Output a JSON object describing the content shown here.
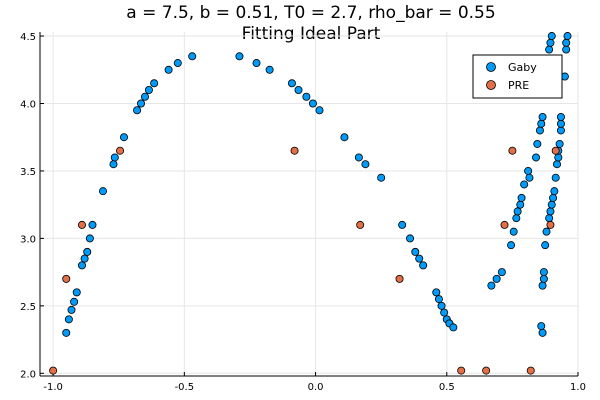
{
  "chart_data": {
    "type": "scatter",
    "title": "a = 7.5, b = 0.51, T0 = 2.7, rho_bar = 0.55",
    "subtitle": "Fitting Ideal Part",
    "xlabel": "",
    "ylabel": "",
    "xlim": [
      -1.05,
      1.0
    ],
    "ylim": [
      1.98,
      4.53
    ],
    "grid": true,
    "legend_position": "top-right",
    "x_ticks": [
      {
        "value": -1.0,
        "label": "-1.0"
      },
      {
        "value": -0.5,
        "label": "-0.5"
      },
      {
        "value": 0.0,
        "label": "0.0"
      },
      {
        "value": 0.5,
        "label": "0.5"
      },
      {
        "value": 1.0,
        "label": "1.0"
      }
    ],
    "y_ticks": [
      {
        "value": 2.0,
        "label": "2.0"
      },
      {
        "value": 2.5,
        "label": "2.5"
      },
      {
        "value": 3.0,
        "label": "3.0"
      },
      {
        "value": 3.5,
        "label": "3.5"
      },
      {
        "value": 4.0,
        "label": "4.0"
      },
      {
        "value": 4.5,
        "label": "4.5"
      }
    ],
    "series": [
      {
        "name": "Gaby",
        "color": "#009af9",
        "points": [
          [
            -0.95,
            2.3
          ],
          [
            -0.94,
            2.4
          ],
          [
            -0.93,
            2.47
          ],
          [
            -0.92,
            2.53
          ],
          [
            -0.91,
            2.6
          ],
          [
            -0.89,
            2.8
          ],
          [
            -0.88,
            2.85
          ],
          [
            -0.87,
            2.9
          ],
          [
            -0.86,
            3.0
          ],
          [
            -0.85,
            3.1
          ],
          [
            -0.81,
            3.35
          ],
          [
            -0.77,
            3.55
          ],
          [
            -0.765,
            3.6
          ],
          [
            -0.73,
            3.75
          ],
          [
            -0.68,
            3.95
          ],
          [
            -0.665,
            4.0
          ],
          [
            -0.65,
            4.05
          ],
          [
            -0.635,
            4.1
          ],
          [
            -0.615,
            4.15
          ],
          [
            -0.56,
            4.25
          ],
          [
            -0.525,
            4.3
          ],
          [
            -0.47,
            4.35
          ],
          [
            -0.29,
            4.35
          ],
          [
            -0.225,
            4.3
          ],
          [
            -0.175,
            4.25
          ],
          [
            -0.09,
            4.15
          ],
          [
            -0.065,
            4.1
          ],
          [
            -0.035,
            4.05
          ],
          [
            -0.01,
            4.0
          ],
          [
            0.015,
            3.95
          ],
          [
            0.11,
            3.75
          ],
          [
            0.165,
            3.6
          ],
          [
            0.19,
            3.55
          ],
          [
            0.25,
            3.45
          ],
          [
            0.33,
            3.1
          ],
          [
            0.36,
            3.0
          ],
          [
            0.38,
            2.9
          ],
          [
            0.395,
            2.85
          ],
          [
            0.41,
            2.8
          ],
          [
            0.46,
            2.6
          ],
          [
            0.47,
            2.55
          ],
          [
            0.48,
            2.5
          ],
          [
            0.49,
            2.45
          ],
          [
            0.5,
            2.4
          ],
          [
            0.51,
            2.37
          ],
          [
            0.525,
            2.34
          ],
          [
            0.67,
            2.65
          ],
          [
            0.69,
            2.7
          ],
          [
            0.71,
            2.75
          ],
          [
            0.745,
            2.95
          ],
          [
            0.755,
            3.05
          ],
          [
            0.765,
            3.15
          ],
          [
            0.77,
            3.2
          ],
          [
            0.78,
            3.25
          ],
          [
            0.785,
            3.3
          ],
          [
            0.795,
            3.4
          ],
          [
            0.81,
            3.5
          ],
          [
            0.815,
            3.45
          ],
          [
            0.84,
            3.6
          ],
          [
            0.845,
            3.7
          ],
          [
            0.855,
            3.8
          ],
          [
            0.86,
            3.85
          ],
          [
            0.865,
            3.9
          ],
          [
            0.86,
            2.35
          ],
          [
            0.865,
            2.3
          ],
          [
            0.865,
            2.65
          ],
          [
            0.87,
            2.7
          ],
          [
            0.87,
            2.75
          ],
          [
            0.875,
            2.95
          ],
          [
            0.88,
            3.05
          ],
          [
            0.89,
            3.15
          ],
          [
            0.895,
            3.2
          ],
          [
            0.9,
            3.25
          ],
          [
            0.905,
            3.3
          ],
          [
            0.91,
            3.35
          ],
          [
            0.915,
            3.45
          ],
          [
            0.92,
            3.55
          ],
          [
            0.925,
            3.6
          ],
          [
            0.925,
            3.65
          ],
          [
            0.93,
            3.7
          ],
          [
            0.935,
            3.8
          ],
          [
            0.935,
            3.85
          ],
          [
            0.935,
            3.9
          ],
          [
            0.95,
            4.2
          ],
          [
            0.955,
            4.4
          ],
          [
            0.955,
            4.45
          ],
          [
            0.96,
            4.5
          ],
          [
            0.89,
            4.4
          ],
          [
            0.895,
            4.45
          ],
          [
            0.9,
            4.5
          ]
        ]
      },
      {
        "name": "PRE",
        "color": "#e26f46",
        "points": [
          [
            -1.0,
            2.02
          ],
          [
            -0.95,
            2.7
          ],
          [
            -0.89,
            3.1
          ],
          [
            -0.745,
            3.65
          ],
          [
            -0.08,
            3.65
          ],
          [
            0.17,
            3.1
          ],
          [
            0.32,
            2.7
          ],
          [
            0.555,
            2.02
          ],
          [
            0.65,
            2.02
          ],
          [
            0.72,
            3.1
          ],
          [
            0.75,
            3.65
          ],
          [
            0.82,
            2.02
          ],
          [
            0.895,
            3.1
          ],
          [
            0.915,
            3.65
          ]
        ]
      }
    ]
  }
}
